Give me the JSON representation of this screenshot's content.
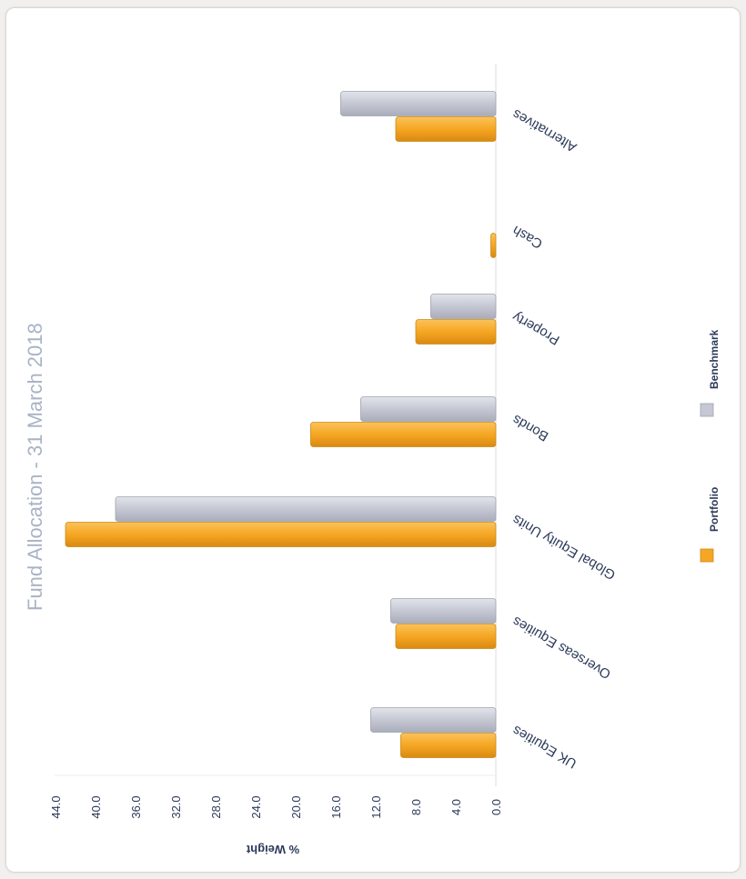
{
  "chart_data": {
    "type": "bar",
    "orientation": "rotated-180",
    "title": "Fund Allocation - 31 March 2018",
    "ylabel": "% Weight",
    "xlabel": "",
    "ylim": [
      0,
      44
    ],
    "yticks": [
      "0.0",
      "4.0",
      "8.0",
      "12.0",
      "16.0",
      "20.0",
      "24.0",
      "28.0",
      "32.0",
      "36.0",
      "40.0",
      "44.0"
    ],
    "categories": [
      "UK Equities",
      "Overseas Equities",
      "Global Equity Units",
      "Bonds",
      "Property",
      "Cash",
      "Alternatives"
    ],
    "series": [
      {
        "name": "Portfolio",
        "values": [
          9.5,
          10.0,
          43.0,
          18.5,
          8.0,
          0.5,
          10.0
        ],
        "color": "#f5a623"
      },
      {
        "name": "Benchmark",
        "values": [
          12.5,
          10.5,
          38.0,
          13.5,
          6.5,
          0.0,
          15.5
        ],
        "color": "#c5c8d3"
      }
    ],
    "legend": "bottom",
    "grid": false
  }
}
